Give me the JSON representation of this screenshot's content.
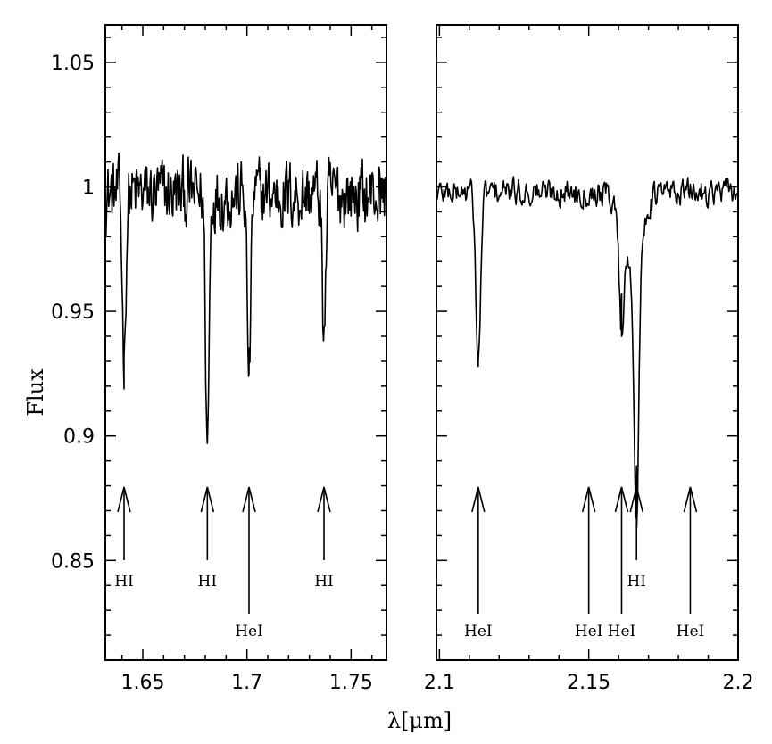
{
  "chart_data": [
    {
      "type": "line",
      "panel": "left",
      "xlim": [
        1.632,
        1.767
      ],
      "ylim": [
        0.81,
        1.065
      ],
      "x_ticks": [
        1.65,
        1.7,
        1.75
      ],
      "x_tick_labels": [
        "1.65",
        "1.7",
        "1.75"
      ],
      "y_ticks": [
        0.85,
        0.9,
        0.95,
        1.0,
        1.05
      ],
      "y_tick_labels": [
        "0.85",
        "0.9",
        "0.95",
        "1",
        "1.05"
      ],
      "ylabel": "Flux",
      "continuum": 0.997,
      "series": [
        {
          "lines": [
            {
              "x": 1.641,
              "y": 0.932
            },
            {
              "x": 1.681,
              "y": 0.897
            },
            {
              "x": 1.701,
              "y": 0.925
            },
            {
              "x": 1.737,
              "y": 0.943
            }
          ]
        }
      ],
      "annotations": [
        {
          "x": 1.641,
          "label": "HI",
          "label_row": 1
        },
        {
          "x": 1.681,
          "label": "HI",
          "label_row": 1
        },
        {
          "x": 1.701,
          "label": "HeI",
          "label_row": 2
        },
        {
          "x": 1.737,
          "label": "HI",
          "label_row": 1
        }
      ]
    },
    {
      "type": "line",
      "panel": "right",
      "xlim": [
        2.099,
        2.2
      ],
      "ylim": [
        0.81,
        1.065
      ],
      "x_ticks": [
        2.1,
        2.15,
        2.2
      ],
      "x_tick_labels": [
        "2.1",
        "2.15",
        "2.2"
      ],
      "y_ticks": [
        0.85,
        0.9,
        0.95,
        1.0,
        1.05
      ],
      "continuum": 0.998,
      "series": [
        {
          "lines": [
            {
              "x": 2.113,
              "y": 0.928
            },
            {
              "x": 2.161,
              "y": 0.957
            },
            {
              "x": 2.166,
              "y": 0.888
            }
          ]
        }
      ],
      "annotations": [
        {
          "x": 2.113,
          "label": "HeI",
          "label_row": 2
        },
        {
          "x": 2.15,
          "label": "HeI",
          "label_row": 2
        },
        {
          "x": 2.161,
          "label": "HeI",
          "label_row": 2
        },
        {
          "x": 2.166,
          "label": "HI",
          "label_row": 1
        },
        {
          "x": 2.184,
          "label": "HeI",
          "label_row": 2
        }
      ]
    }
  ],
  "xlabel": "λ[μm]"
}
